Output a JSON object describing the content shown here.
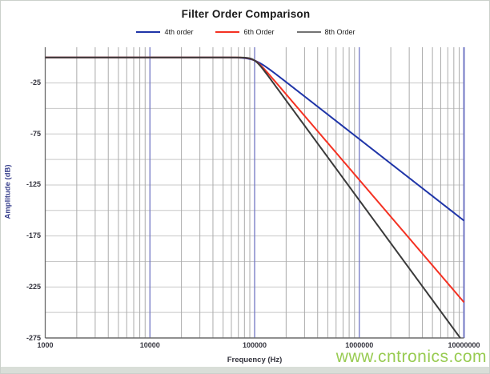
{
  "page": {
    "background": "#ffffff",
    "frame_border_color": "#cbd0cb",
    "bottom_strip_color": "#d9ded8"
  },
  "watermark": {
    "text": "www.cntronics.com",
    "color": "#8dc63f"
  },
  "chart_data": {
    "type": "line",
    "title": "Filter Order Comparison",
    "xlabel": "Frequency (Hz)",
    "ylabel": "Amplitude (dB)",
    "x_scale": "log",
    "xlim": [
      1000,
      10000000
    ],
    "ylim": [
      -275,
      10
    ],
    "grid": {
      "horizontal_color": "#c8c8c8",
      "horizontal_step_db": 25,
      "minor_vertical_color": "#ababab",
      "major_vertical_color": "#7277c4",
      "axis_color": "#6b6b6b"
    },
    "legend_position": "top",
    "x_ticks": [
      {
        "value": 1000,
        "label": "1000"
      },
      {
        "value": 10000,
        "label": "10000"
      },
      {
        "value": 100000,
        "label": "100000"
      },
      {
        "value": 1000000,
        "label": "1000000"
      },
      {
        "value": 10000000,
        "label": "10000000"
      }
    ],
    "y_ticks": [
      {
        "value": -25,
        "label": "-25"
      },
      {
        "value": -75,
        "label": "-75"
      },
      {
        "value": -125,
        "label": "-125"
      },
      {
        "value": -175,
        "label": "-175"
      },
      {
        "value": -225,
        "label": "-225"
      },
      {
        "value": -275,
        "label": "-275"
      }
    ],
    "series": [
      {
        "name": "4th order",
        "color": "#1f35a8",
        "legend_color": "#1f35a8",
        "cutoff_hz": 100000,
        "rolloff_db_per_decade": 80,
        "points": [
          {
            "f": 1000,
            "db": 0
          },
          {
            "f": 10000,
            "db": 0
          },
          {
            "f": 100000,
            "db": -3
          },
          {
            "f": 1000000,
            "db": -80
          },
          {
            "f": 10000000,
            "db": -160
          }
        ]
      },
      {
        "name": "6th Order",
        "color": "#f43122",
        "legend_color": "#f43122",
        "cutoff_hz": 100000,
        "rolloff_db_per_decade": 120,
        "points": [
          {
            "f": 1000,
            "db": 0
          },
          {
            "f": 10000,
            "db": 0
          },
          {
            "f": 100000,
            "db": -3
          },
          {
            "f": 1000000,
            "db": -120
          },
          {
            "f": 10000000,
            "db": -240
          }
        ]
      },
      {
        "name": "8th Order",
        "color": "#3a3a3a",
        "legend_color": "#737373",
        "cutoff_hz": 100000,
        "rolloff_db_per_decade": 140,
        "points": [
          {
            "f": 1000,
            "db": 0
          },
          {
            "f": 10000,
            "db": 0
          },
          {
            "f": 100000,
            "db": -3
          },
          {
            "f": 1000000,
            "db": -140
          },
          {
            "f": 9200000,
            "db": -275
          }
        ]
      }
    ]
  }
}
